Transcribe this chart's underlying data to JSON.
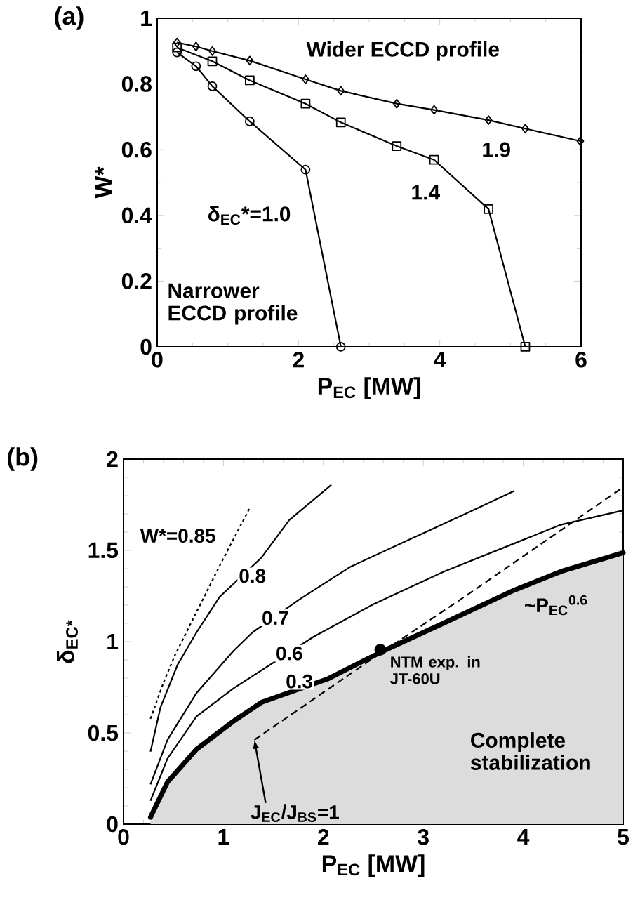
{
  "chart_data": [
    {
      "type": "line",
      "title": "(a)",
      "xlabel": "P$_{EC}$ [MW]",
      "ylabel": "W*",
      "xlim": [
        0,
        6
      ],
      "ylim": [
        0,
        1
      ],
      "xticks": [
        0,
        2,
        4,
        6
      ],
      "yticks": [
        0,
        0.2,
        0.4,
        0.6,
        0.8,
        1
      ],
      "series": [
        {
          "color": "#000000",
          "marker": "circle",
          "x": [
            0.28,
            0.55,
            0.78,
            1.31,
            2.1,
            2.6
          ],
          "values": [
            0.896,
            0.854,
            0.793,
            0.686,
            0.539,
            0
          ]
        },
        {
          "color": "#000000",
          "marker": "square",
          "x": [
            0.28,
            0.78,
            1.31,
            2.1,
            2.6,
            3.39,
            3.92,
            4.69,
            5.21
          ],
          "values": [
            0.911,
            0.869,
            0.811,
            0.74,
            0.683,
            0.611,
            0.569,
            0.419,
            0
          ]
        },
        {
          "color": "#000000",
          "marker": "diamond",
          "x": [
            0.28,
            0.55,
            0.78,
            1.31,
            2.1,
            2.6,
            3.39,
            3.92,
            4.69,
            5.21,
            5.99
          ],
          "values": [
            0.926,
            0.914,
            0.9,
            0.871,
            0.814,
            0.779,
            0.74,
            0.721,
            0.69,
            0.664,
            0.626
          ]
        }
      ],
      "annotations": [
        "Wider ECCD profile",
        "Narrower ECCD profile",
        "1.9",
        "1.4",
        "δ$_{EC}$*=1.0"
      ]
    },
    {
      "type": "line",
      "title": "(b)",
      "xlabel": "P$_{EC}$ [MW]",
      "ylabel": "δ$_{EC*}$",
      "xlim": [
        0,
        5
      ],
      "ylim": [
        0,
        2
      ],
      "xticks": [
        0,
        1,
        2,
        3,
        4,
        5
      ],
      "yticks": [
        0,
        0.5,
        1,
        1.5,
        2
      ],
      "series": [
        {
          "color": "#000000",
          "line_style": "dotted",
          "x": [
            0.27,
            0.398,
            0.515,
            0.702,
            0.843,
            0.983,
            1.264
          ],
          "values": [
            0.577,
            0.772,
            0.926,
            1.131,
            1.285,
            1.438,
            1.733
          ]
        },
        {
          "color": "#000000",
          "line_style": "solid",
          "x": [
            0.27,
            0.37,
            0.54,
            0.73,
            0.96,
            1.38,
            1.66,
            2.08
          ],
          "values": [
            0.397,
            0.64,
            0.872,
            1.05,
            1.244,
            1.46,
            1.667,
            1.859
          ]
        },
        {
          "color": "#000000",
          "line_style": "solid",
          "x": [
            0.27,
            0.44,
            0.73,
            1.1,
            1.29,
            1.76,
            2.27,
            2.88,
            3.44,
            3.91
          ],
          "values": [
            0.218,
            0.462,
            0.718,
            0.949,
            1.05,
            1.231,
            1.41,
            1.564,
            1.705,
            1.826
          ]
        },
        {
          "color": "#000000",
          "line_style": "solid",
          "x": [
            0.27,
            0.44,
            0.73,
            1.1,
            1.9,
            2.5,
            3.21,
            3.91,
            4.38,
            4.99
          ],
          "values": [
            0.128,
            0.359,
            0.59,
            0.744,
            1.026,
            1.205,
            1.385,
            1.538,
            1.641,
            1.718
          ]
        },
        {
          "type": "area",
          "color": "#dcdcdc",
          "line_style": "solid",
          "x": [
            0.27,
            0.44,
            0.73,
            1.1,
            1.38,
            2.04,
            2.6,
            3.21,
            3.91,
            4.38,
            5.0
          ],
          "values": [
            0.038,
            0.231,
            0.41,
            0.564,
            0.667,
            0.795,
            0.949,
            1.103,
            1.282,
            1.385,
            1.487
          ]
        },
        {
          "color": "#000000",
          "line_style": "dashed",
          "x": [
            1.31,
            2.5,
            3.44,
            5.0
          ],
          "values": [
            0.462,
            0.91,
            1.256,
            1.846
          ]
        },
        {
          "type": "scatter",
          "color": "#000000",
          "marker": "circle",
          "x": [
            2.57
          ],
          "values": [
            0.956
          ]
        }
      ],
      "annotations": [
        "Complete stabilization",
        "W*=0.85",
        "~P$_{EC}$$^{0.6}$",
        "NTM exp. in JT-60U",
        {
          "text": "0.8",
          "x": 1.29,
          "y": 1.36
        },
        {
          "text": "0.7",
          "x": 1.52,
          "y": 1.13
        },
        {
          "text": "0.6",
          "x": 1.66,
          "y": 0.936
        },
        {
          "text": "0.3",
          "x": 1.76,
          "y": 0.782
        },
        {
          "text": "J$_{EC}$/J$_{BS}$=1",
          "x": 1.31,
          "y": 0.462
        }
      ]
    }
  ]
}
